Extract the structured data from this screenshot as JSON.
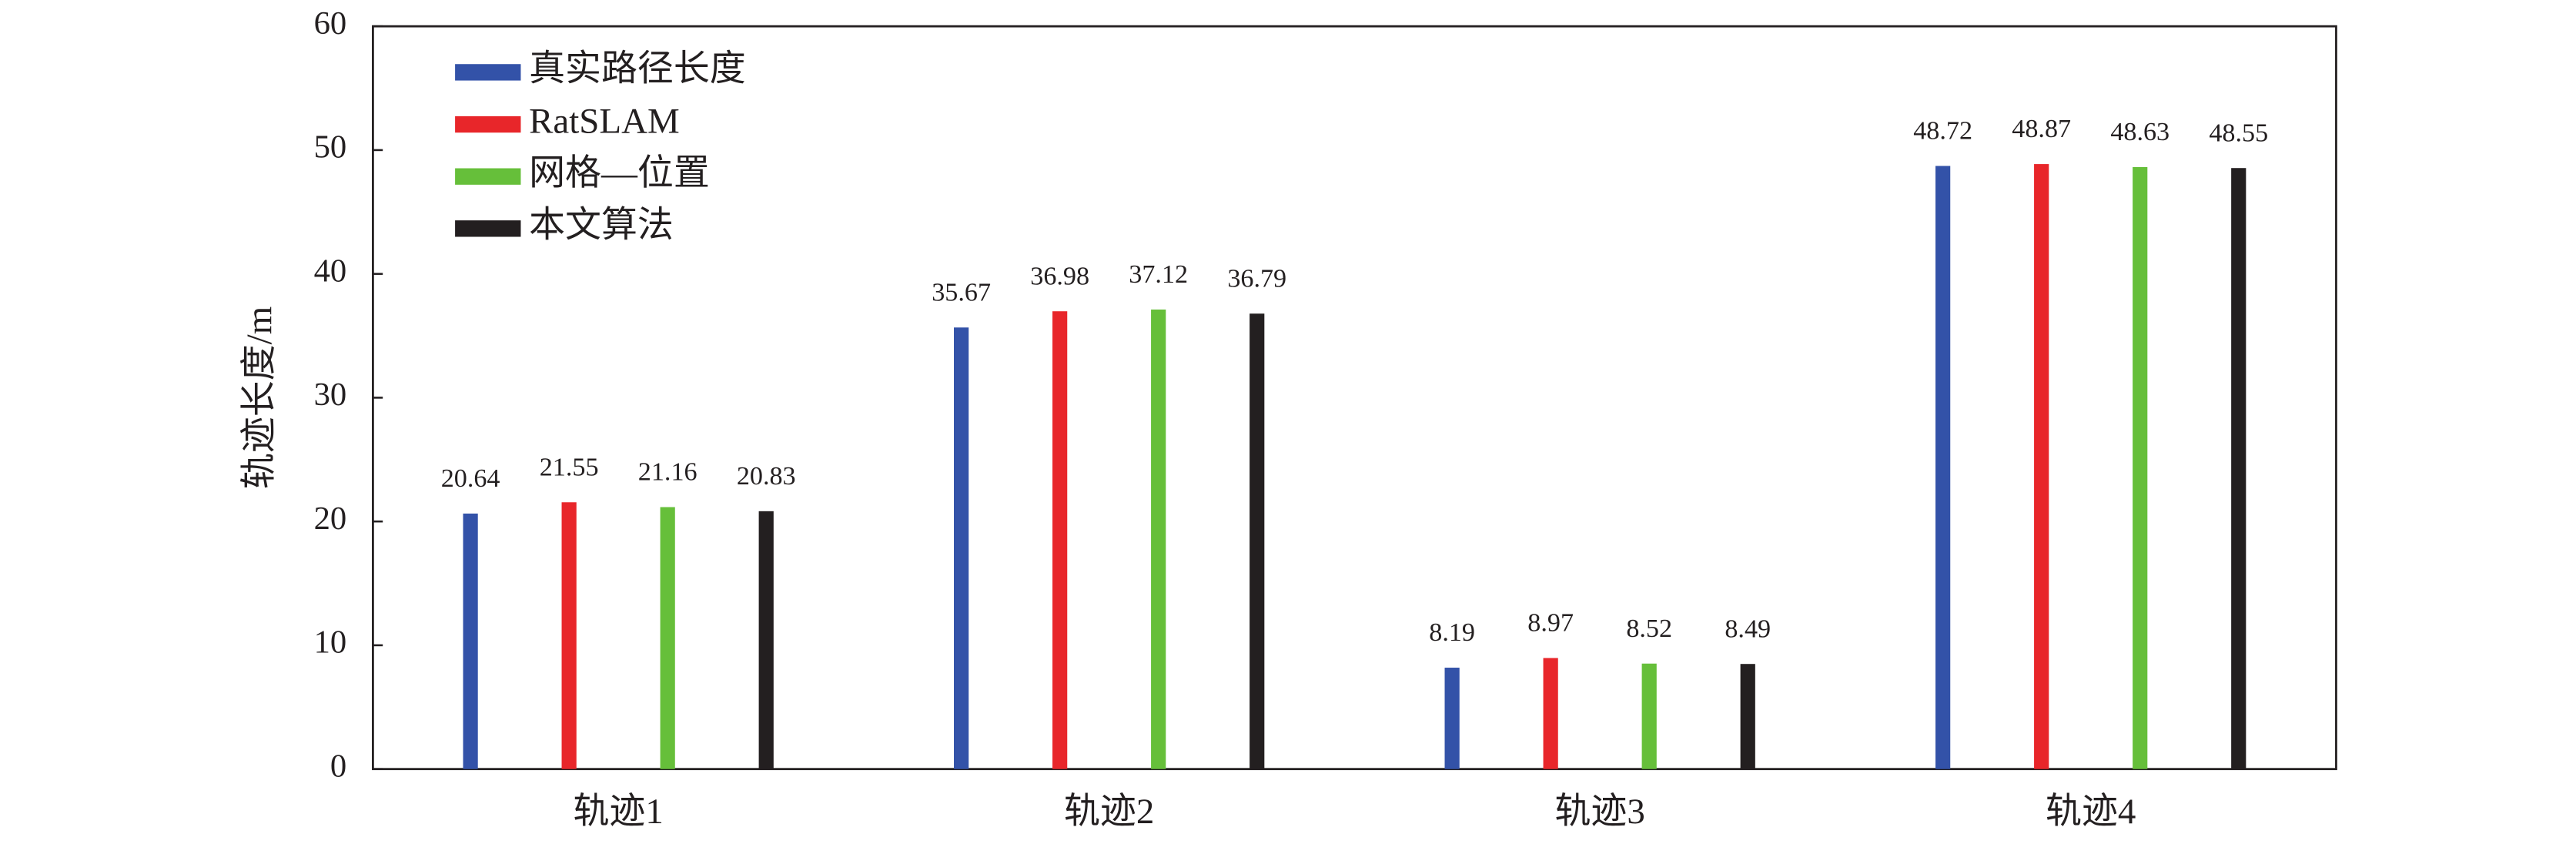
{
  "chart_data": {
    "type": "bar",
    "ylabel": "轨迹长度/m",
    "categories": [
      "轨迹1",
      "轨迹2",
      "轨迹3",
      "轨迹4"
    ],
    "series": [
      {
        "name": "真实路径长度",
        "color": "#3352a8",
        "values": [
          20.64,
          35.67,
          8.19,
          48.72
        ]
      },
      {
        "name": "RatSLAM",
        "color": "#e8262a",
        "values": [
          21.55,
          36.98,
          8.97,
          48.87
        ]
      },
      {
        "name": "网格—位置",
        "color": "#66bf3a",
        "values": [
          21.16,
          37.12,
          8.52,
          48.63
        ]
      },
      {
        "name": "本文算法",
        "color": "#231f20",
        "values": [
          20.83,
          36.79,
          8.49,
          48.55
        ]
      }
    ],
    "ylim": [
      0,
      60
    ],
    "yticks": [
      0,
      10,
      20,
      30,
      40,
      50,
      60
    ],
    "legend": "upper-left"
  }
}
